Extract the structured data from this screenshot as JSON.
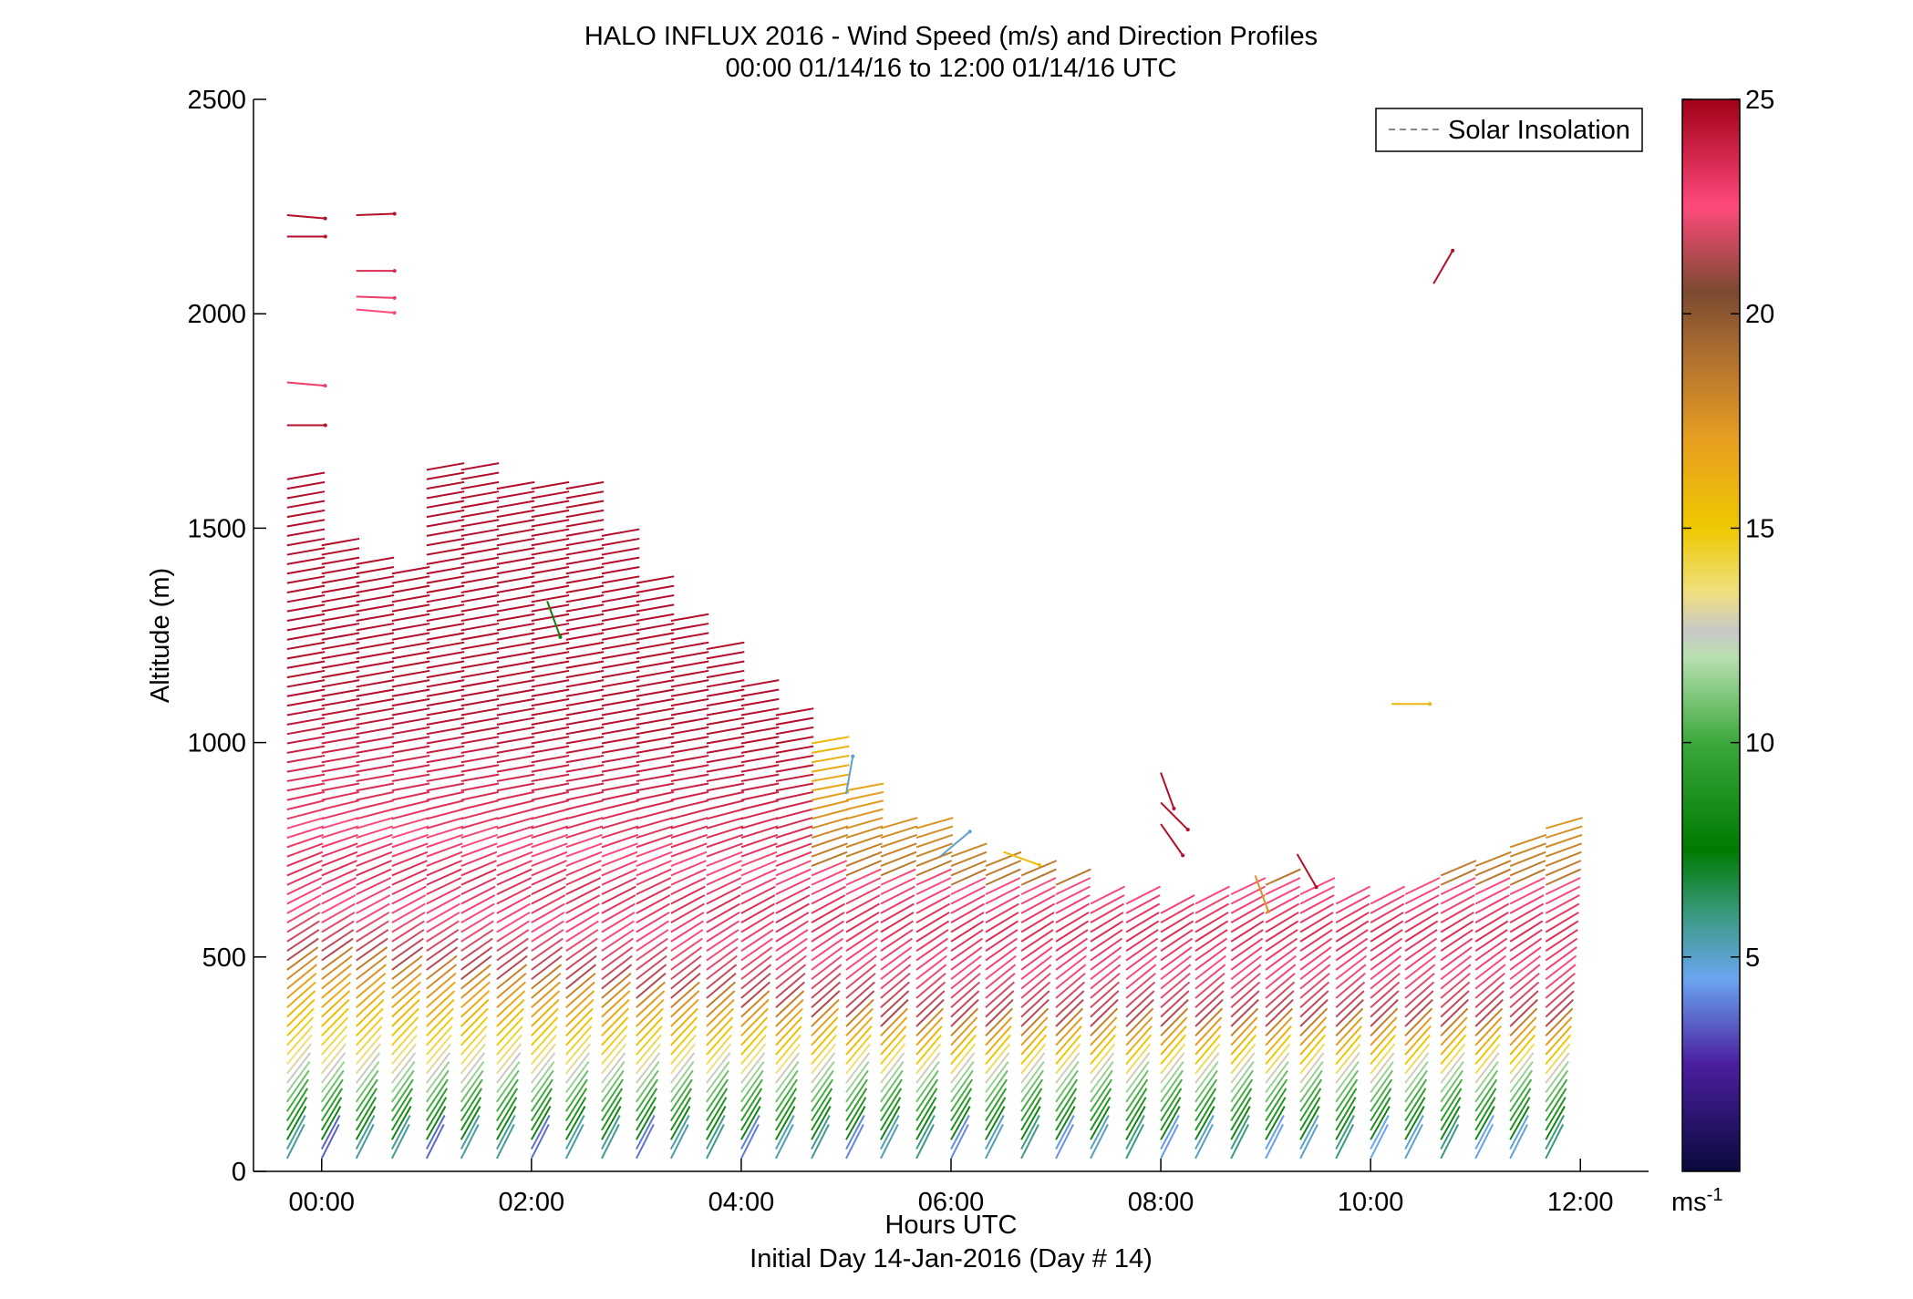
{
  "chart_data": {
    "type": "wind-barb-profile",
    "title": "HALO INFLUX 2016 - Wind Speed (m/s) and Direction Profiles",
    "subtitle": "00:00 01/14/16 to 12:00 01/14/16  UTC",
    "xlabel": "Hours UTC",
    "xlabel2": "Initial Day 14-Jan-2016 (Day # 14)",
    "ylabel": "Altitude (m)",
    "xlim_hours": [
      -0.65,
      12.65
    ],
    "ylim": [
      0,
      2500
    ],
    "x_ticks": [
      {
        "hour": 0,
        "label": "00:00"
      },
      {
        "hour": 2,
        "label": "02:00"
      },
      {
        "hour": 4,
        "label": "04:00"
      },
      {
        "hour": 6,
        "label": "06:00"
      },
      {
        "hour": 8,
        "label": "08:00"
      },
      {
        "hour": 10,
        "label": "10:00"
      },
      {
        "hour": 12,
        "label": "12:00"
      }
    ],
    "y_ticks": [
      {
        "value": 0,
        "label": "0"
      },
      {
        "value": 500,
        "label": "500"
      },
      {
        "value": 1000,
        "label": "1000"
      },
      {
        "value": 1500,
        "label": "1500"
      },
      {
        "value": 2000,
        "label": "2000"
      },
      {
        "value": 2500,
        "label": "2500"
      }
    ],
    "legend": {
      "entry": "Solar Insolation",
      "style": "dashed",
      "color": "#888888",
      "placement": "top-right"
    },
    "colorbar": {
      "range": [
        0,
        25
      ],
      "ticks": [
        {
          "value": 5,
          "label": "5"
        },
        {
          "value": 10,
          "label": "10"
        },
        {
          "value": 15,
          "label": "15"
        },
        {
          "value": 20,
          "label": "20"
        },
        {
          "value": 25,
          "label": "25"
        }
      ],
      "unit_label": "ms",
      "unit_exponent": "-1",
      "stops": [
        {
          "v": 0,
          "color": "#0a0a3c"
        },
        {
          "v": 2.5,
          "color": "#4b1ea0"
        },
        {
          "v": 4.5,
          "color": "#6aa6f0"
        },
        {
          "v": 6,
          "color": "#3a9a80"
        },
        {
          "v": 7.5,
          "color": "#007a00"
        },
        {
          "v": 10,
          "color": "#3ca83c"
        },
        {
          "v": 12,
          "color": "#b8e0b0"
        },
        {
          "v": 12.6,
          "color": "#c8c8c8"
        },
        {
          "v": 13.5,
          "color": "#f0e080"
        },
        {
          "v": 15,
          "color": "#eec800"
        },
        {
          "v": 17,
          "color": "#e8a020"
        },
        {
          "v": 19,
          "color": "#b07030"
        },
        {
          "v": 20.5,
          "color": "#7a4a30"
        },
        {
          "v": 22.5,
          "color": "#ff4a7c"
        },
        {
          "v": 25,
          "color": "#a00018"
        }
      ]
    },
    "profile_hours": [
      -0.33,
      0.0,
      0.33,
      0.67,
      1.0,
      1.33,
      1.67,
      2.0,
      2.33,
      2.67,
      3.0,
      3.33,
      3.67,
      4.0,
      4.33,
      4.67,
      5.0,
      5.33,
      5.67,
      6.0,
      6.33,
      6.67,
      7.0,
      7.33,
      7.67,
      8.0,
      8.33,
      8.67,
      9.0,
      9.33,
      9.67,
      10.0,
      10.33,
      10.67,
      11.0,
      11.33,
      11.67
    ],
    "profile_tops_m": [
      1620,
      1460,
      1430,
      1400,
      1640,
      1640,
      1600,
      1600,
      1600,
      1500,
      1390,
      1300,
      1230,
      1150,
      1080,
      1000,
      900,
      820,
      800,
      740,
      720,
      700,
      680,
      640,
      640,
      620,
      640,
      660,
      680,
      660,
      640,
      640,
      650,
      700,
      730,
      760,
      800
    ],
    "upper_isolated_barbs": [
      {
        "hour": -0.33,
        "alt": 2230,
        "speed": 24.5,
        "dir_deg": 95
      },
      {
        "hour": -0.33,
        "alt": 2180,
        "speed": 24.5,
        "dir_deg": 90
      },
      {
        "hour": 0.33,
        "alt": 2230,
        "speed": 24.5,
        "dir_deg": 88
      },
      {
        "hour": 0.33,
        "alt": 2100,
        "speed": 23.5,
        "dir_deg": 90
      },
      {
        "hour": 0.33,
        "alt": 2040,
        "speed": 23.0,
        "dir_deg": 92
      },
      {
        "hour": 0.33,
        "alt": 2010,
        "speed": 22.5,
        "dir_deg": 95
      },
      {
        "hour": -0.33,
        "alt": 1840,
        "speed": 23.0,
        "dir_deg": 95
      },
      {
        "hour": -0.33,
        "alt": 1740,
        "speed": 24.5,
        "dir_deg": 90
      },
      {
        "hour": 10.6,
        "alt": 2070,
        "speed": 24.5,
        "dir_deg": 30
      },
      {
        "hour": 8.0,
        "alt": 930,
        "speed": 24.5,
        "dir_deg": 160
      },
      {
        "hour": 8.0,
        "alt": 860,
        "speed": 24.5,
        "dir_deg": 135
      },
      {
        "hour": 8.0,
        "alt": 810,
        "speed": 24.5,
        "dir_deg": 145
      },
      {
        "hour": 9.3,
        "alt": 740,
        "speed": 24.5,
        "dir_deg": 150
      },
      {
        "hour": 8.9,
        "alt": 690,
        "speed": 17.5,
        "dir_deg": 160
      },
      {
        "hour": 10.2,
        "alt": 1090,
        "speed": 16.0,
        "dir_deg": 90
      },
      {
        "hour": 5.0,
        "alt": 880,
        "speed": 5.0,
        "dir_deg": 10
      },
      {
        "hour": 5.9,
        "alt": 735,
        "speed": 5.0,
        "dir_deg": 50
      },
      {
        "hour": 6.5,
        "alt": 745,
        "speed": 15.5,
        "dir_deg": 110
      },
      {
        "hour": 2.15,
        "alt": 1330,
        "speed": 8.0,
        "dir_deg": 160
      }
    ]
  }
}
